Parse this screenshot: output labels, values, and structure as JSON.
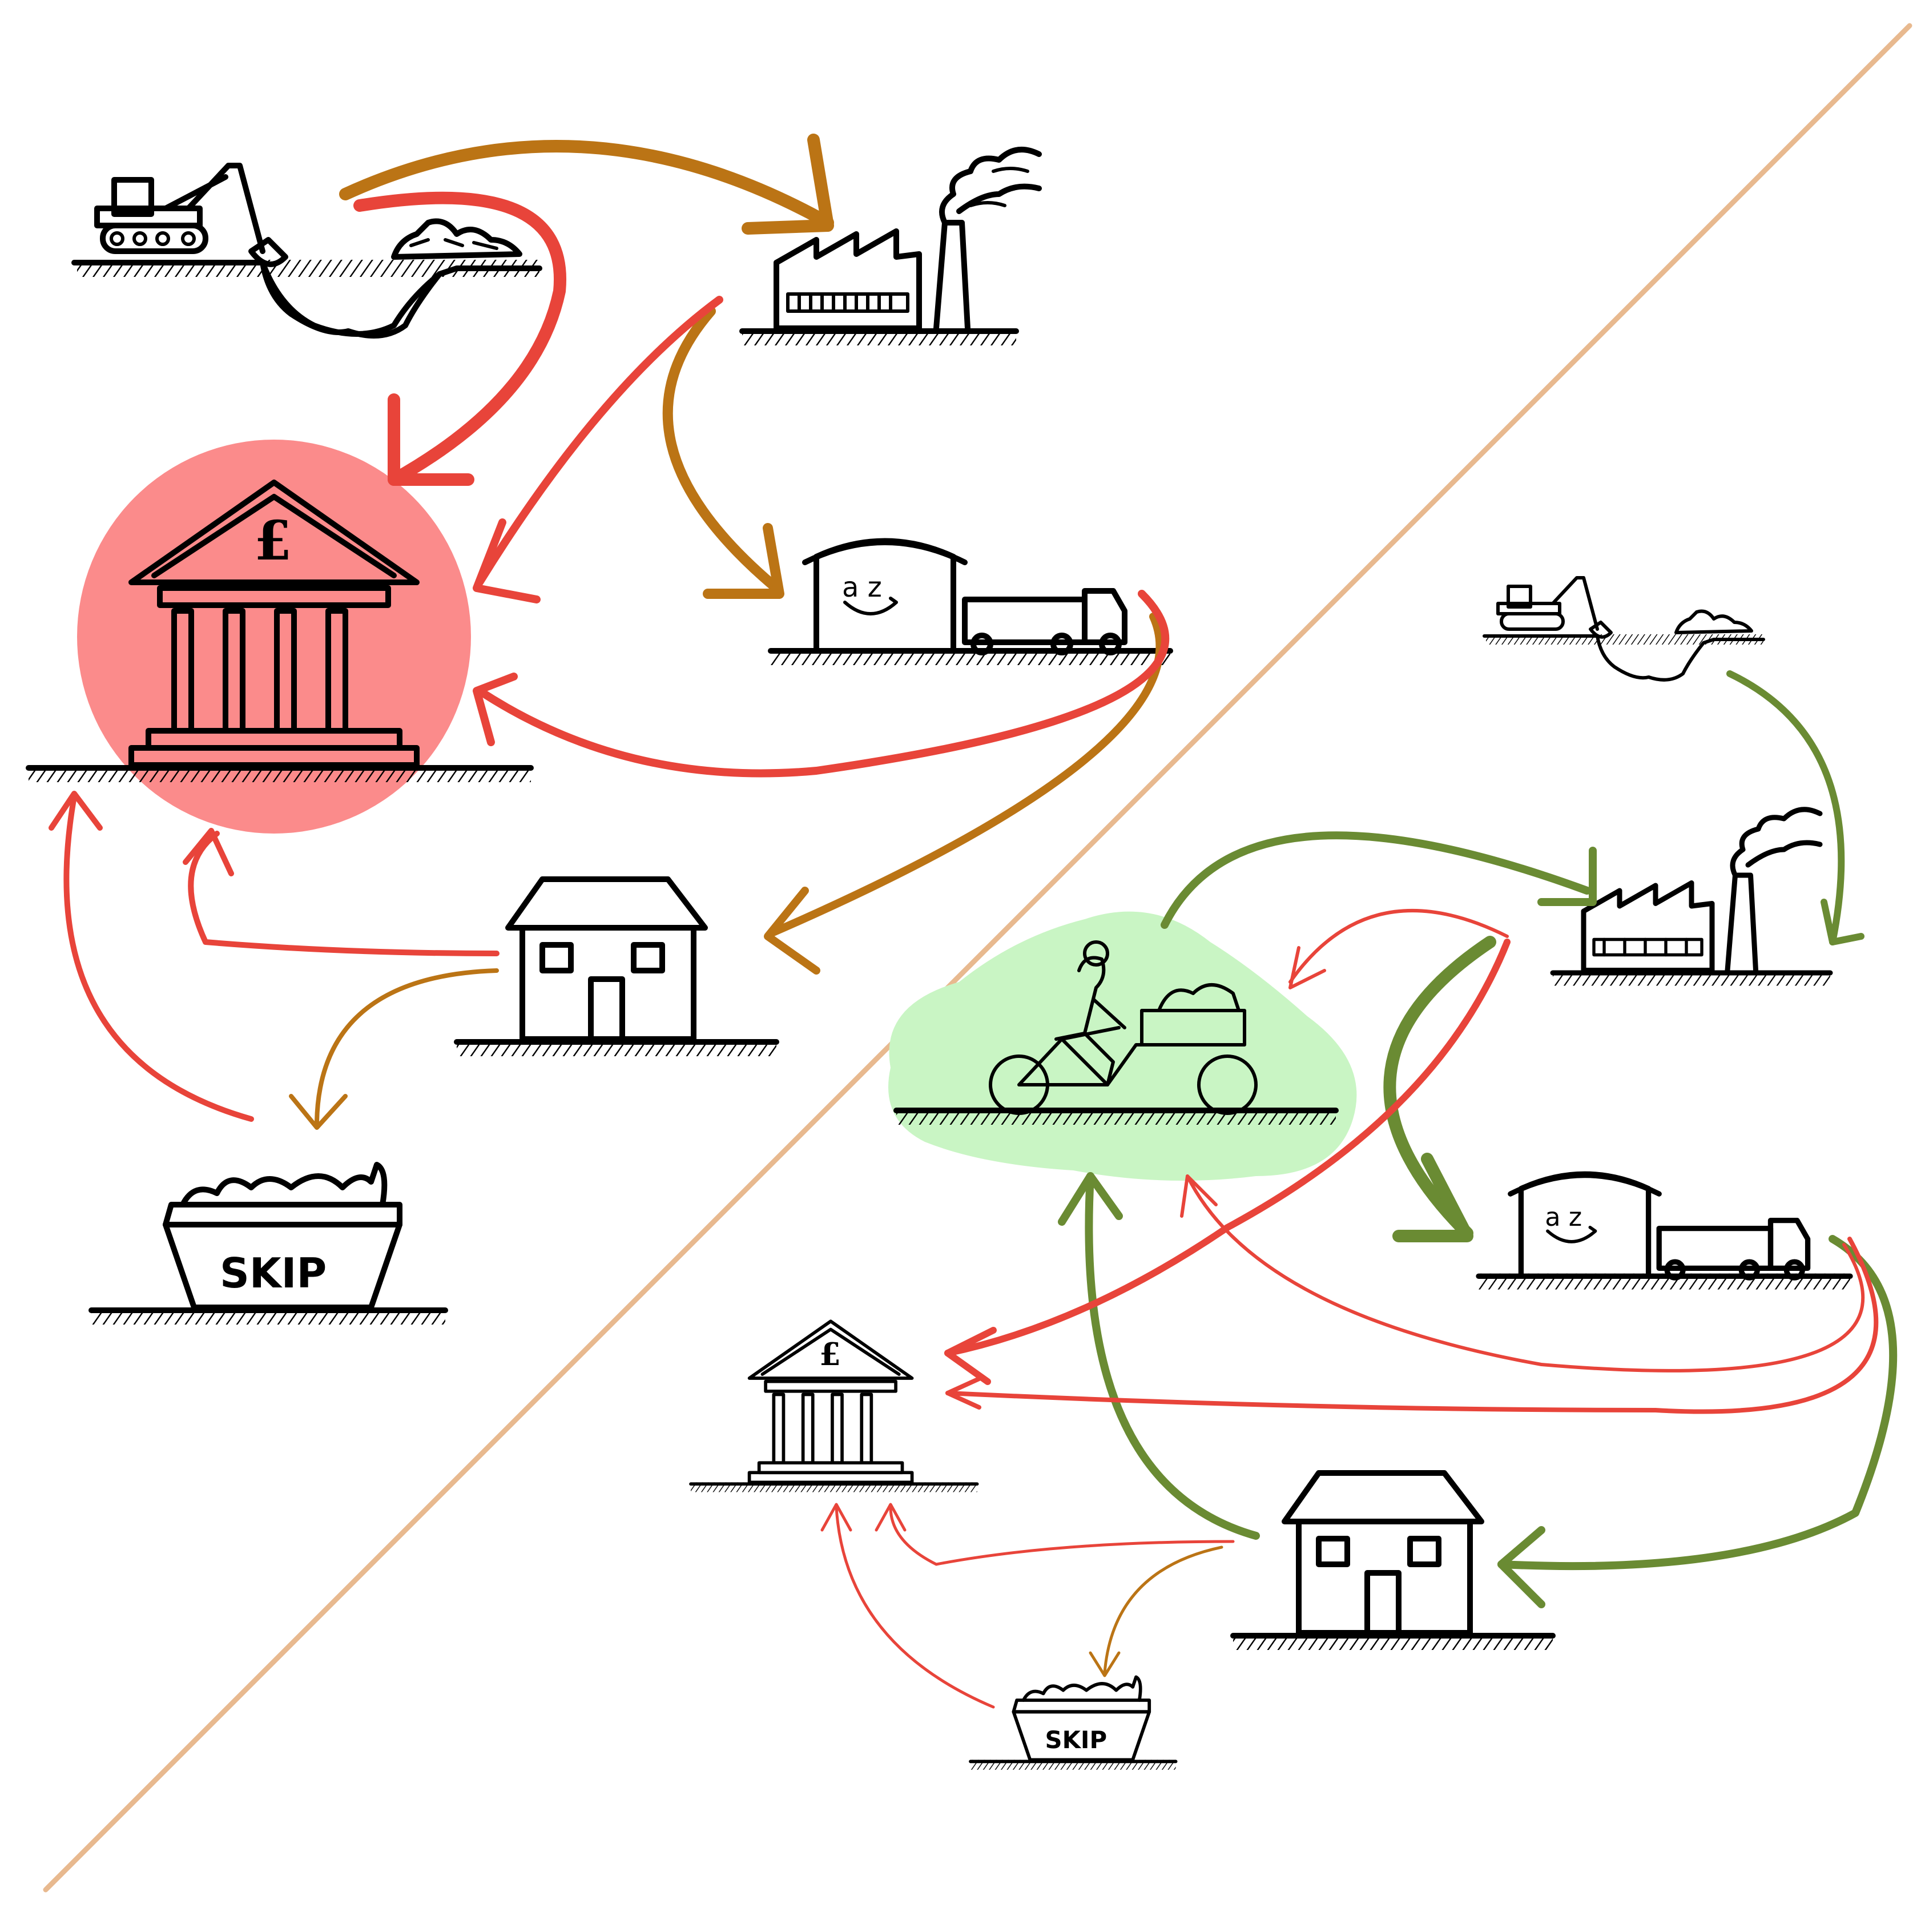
{
  "colors": {
    "background": "#ffffff",
    "divider": "#e8b98f",
    "ink": "#000000",
    "money_flow": "#e8443a",
    "material_flow_linear": "#bb7415",
    "material_flow_circular": "#6a8b33",
    "bank_highlight": "#fb8b8b",
    "cargo_bike_highlight": "#c9f5c4"
  },
  "icons": {
    "excavator": "excavator-icon",
    "factory": "factory-icon",
    "warehouse": "warehouse-truck-icon",
    "bank": "bank-icon",
    "house": "house-icon",
    "skip": "skip-icon",
    "cargo_bike": "cargo-bike-icon"
  },
  "labels": {
    "skip_left": "SKIP",
    "skip_right": "SKIP",
    "bank_symbol_left": "£",
    "bank_symbol_right": "£",
    "warehouse_logo_left": "a  z",
    "warehouse_logo_right": "a  z"
  }
}
